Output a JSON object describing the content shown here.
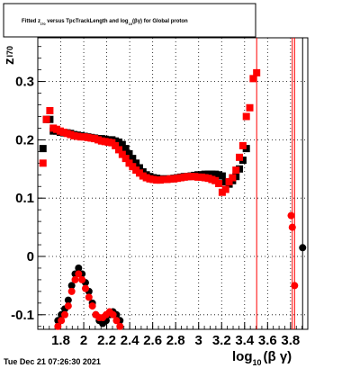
{
  "chart_data": {
    "type": "scatter",
    "title": "Fitted  z _{I70}  versus TpcTrackLength and log₁₀(βγ) for Global proton",
    "title_parts": {
      "pre": "Fitted  z",
      "sub1": "I70",
      "mid": "  versus TpcTrackLength and log",
      "sub2": "10",
      "post": "(βγ) for Global proton"
    },
    "xlabel": "log₁₀(βγ)",
    "xlabel_parts": {
      "main": "log",
      "sub": "10",
      "rest": "(β γ)"
    },
    "ylabel": "z_I70",
    "ylabel_parts": {
      "main": "z",
      "sub": "I70"
    },
    "xlim": [
      1.6,
      3.95
    ],
    "ylim": [
      -0.125,
      0.375
    ],
    "x_ticks": [
      "1.8",
      "2",
      "2.2",
      "2.4",
      "2.6",
      "2.8",
      "3",
      "3.2",
      "3.4",
      "3.6",
      "3.8"
    ],
    "x_tick_values": [
      1.8,
      2.0,
      2.2,
      2.4,
      2.6,
      2.8,
      3.0,
      3.2,
      3.4,
      3.6,
      3.8
    ],
    "x_tick_labels_render": [
      "1.8",
      "2",
      "2.2",
      "2.4",
      "2.6",
      "2.8",
      "3",
      "3.2",
      "3.4",
      "3.6",
      "3.8"
    ],
    "y_ticks": [
      "-0.1",
      "0",
      "0.1",
      "0.2",
      "0.3"
    ],
    "y_tick_values": [
      -0.1,
      0.0,
      0.1,
      0.2,
      0.3
    ],
    "grid": true,
    "legend": "none",
    "footer": "Tue Dec 21 07:26:30 2021",
    "series": [
      {
        "color": "#000000",
        "marker": "square",
        "points": [
          [
            1.645,
            0.185
          ],
          [
            1.675,
            0.235
          ],
          [
            1.705,
            0.235
          ],
          [
            1.735,
            0.215
          ],
          [
            1.765,
            0.215
          ],
          [
            1.795,
            0.213
          ],
          [
            1.825,
            0.212
          ],
          [
            1.855,
            0.212
          ],
          [
            1.885,
            0.211
          ],
          [
            1.915,
            0.209
          ],
          [
            1.945,
            0.208
          ],
          [
            1.975,
            0.207
          ],
          [
            2.005,
            0.206
          ],
          [
            2.035,
            0.205
          ],
          [
            2.065,
            0.204
          ],
          [
            2.095,
            0.203
          ],
          [
            2.125,
            0.202
          ],
          [
            2.155,
            0.202
          ],
          [
            2.185,
            0.201
          ],
          [
            2.215,
            0.2
          ],
          [
            2.245,
            0.2
          ],
          [
            2.275,
            0.198
          ],
          [
            2.305,
            0.196
          ],
          [
            2.335,
            0.192
          ],
          [
            2.365,
            0.185
          ],
          [
            2.395,
            0.176
          ],
          [
            2.425,
            0.168
          ],
          [
            2.455,
            0.16
          ],
          [
            2.485,
            0.152
          ],
          [
            2.515,
            0.145
          ],
          [
            2.545,
            0.14
          ],
          [
            2.575,
            0.137
          ],
          [
            2.605,
            0.135
          ],
          [
            2.635,
            0.134
          ],
          [
            2.665,
            0.133
          ],
          [
            2.695,
            0.133
          ],
          [
            2.725,
            0.133
          ],
          [
            2.755,
            0.133
          ],
          [
            2.785,
            0.134
          ],
          [
            2.815,
            0.135
          ],
          [
            2.845,
            0.136
          ],
          [
            2.875,
            0.137
          ],
          [
            2.905,
            0.137
          ],
          [
            2.935,
            0.138
          ],
          [
            2.965,
            0.139
          ],
          [
            2.995,
            0.14
          ],
          [
            3.025,
            0.14
          ],
          [
            3.055,
            0.141
          ],
          [
            3.085,
            0.141
          ],
          [
            3.115,
            0.141
          ],
          [
            3.145,
            0.141
          ],
          [
            3.175,
            0.14
          ],
          [
            3.205,
            0.138
          ],
          [
            3.235,
            0.128
          ],
          [
            3.265,
            0.124
          ],
          [
            3.295,
            0.13
          ],
          [
            3.325,
            0.137
          ],
          [
            3.355,
            0.15
          ],
          [
            3.385,
            0.165
          ],
          [
            3.415,
            0.185
          ]
        ]
      },
      {
        "color": "#000000",
        "marker": "circle",
        "points": [
          [
            1.775,
            -0.11
          ],
          [
            1.805,
            -0.1
          ],
          [
            1.835,
            -0.09
          ],
          [
            1.865,
            -0.075
          ],
          [
            1.895,
            -0.05
          ],
          [
            1.925,
            -0.03
          ],
          [
            1.955,
            -0.02
          ],
          [
            1.985,
            -0.03
          ],
          [
            2.015,
            -0.045
          ],
          [
            2.045,
            -0.06
          ],
          [
            2.075,
            -0.08
          ],
          [
            2.105,
            -0.1
          ],
          [
            2.135,
            -0.11
          ],
          [
            2.165,
            -0.115
          ],
          [
            2.195,
            -0.11
          ],
          [
            2.225,
            -0.1
          ],
          [
            2.255,
            -0.095
          ],
          [
            2.285,
            -0.1
          ],
          [
            2.315,
            -0.11
          ],
          [
            3.905,
            0.015
          ]
        ]
      },
      {
        "color": "#ff0000",
        "marker": "square",
        "points": [
          [
            1.645,
            0.16
          ],
          [
            1.675,
            0.235
          ],
          [
            1.705,
            0.25
          ],
          [
            1.735,
            0.22
          ],
          [
            1.765,
            0.218
          ],
          [
            1.795,
            0.215
          ],
          [
            1.825,
            0.213
          ],
          [
            1.855,
            0.211
          ],
          [
            1.885,
            0.209
          ],
          [
            1.915,
            0.207
          ],
          [
            1.945,
            0.206
          ],
          [
            1.975,
            0.205
          ],
          [
            2.005,
            0.205
          ],
          [
            2.035,
            0.204
          ],
          [
            2.065,
            0.203
          ],
          [
            2.095,
            0.202
          ],
          [
            2.125,
            0.2
          ],
          [
            2.155,
            0.198
          ],
          [
            2.185,
            0.197
          ],
          [
            2.215,
            0.196
          ],
          [
            2.245,
            0.195
          ],
          [
            2.275,
            0.19
          ],
          [
            2.305,
            0.183
          ],
          [
            2.335,
            0.175
          ],
          [
            2.365,
            0.168
          ],
          [
            2.395,
            0.16
          ],
          [
            2.425,
            0.154
          ],
          [
            2.455,
            0.148
          ],
          [
            2.485,
            0.143
          ],
          [
            2.515,
            0.138
          ],
          [
            2.545,
            0.135
          ],
          [
            2.575,
            0.133
          ],
          [
            2.605,
            0.132
          ],
          [
            2.635,
            0.131
          ],
          [
            2.665,
            0.131
          ],
          [
            2.695,
            0.132
          ],
          [
            2.725,
            0.132
          ],
          [
            2.755,
            0.133
          ],
          [
            2.785,
            0.133
          ],
          [
            2.815,
            0.134
          ],
          [
            2.845,
            0.135
          ],
          [
            2.875,
            0.136
          ],
          [
            2.905,
            0.137
          ],
          [
            2.935,
            0.137
          ],
          [
            2.965,
            0.137
          ],
          [
            2.995,
            0.136
          ],
          [
            3.025,
            0.136
          ],
          [
            3.055,
            0.135
          ],
          [
            3.085,
            0.134
          ],
          [
            3.115,
            0.132
          ],
          [
            3.145,
            0.13
          ],
          [
            3.175,
            0.125
          ],
          [
            3.205,
            0.11
          ],
          [
            3.235,
            0.115
          ],
          [
            3.265,
            0.128
          ],
          [
            3.295,
            0.135
          ],
          [
            3.325,
            0.148
          ],
          [
            3.355,
            0.17
          ],
          [
            3.385,
            0.19
          ],
          [
            3.415,
            0.24
          ],
          [
            3.445,
            0.255
          ],
          [
            3.475,
            0.305
          ],
          [
            3.505,
            0.315
          ]
        ]
      },
      {
        "color": "#ff0000",
        "marker": "circle",
        "points": [
          [
            1.775,
            -0.12
          ],
          [
            1.805,
            -0.11
          ],
          [
            1.835,
            -0.1
          ],
          [
            1.865,
            -0.085
          ],
          [
            1.895,
            -0.06
          ],
          [
            1.925,
            -0.04
          ],
          [
            1.955,
            -0.03
          ],
          [
            1.985,
            -0.04
          ],
          [
            2.015,
            -0.055
          ],
          [
            2.045,
            -0.07
          ],
          [
            2.075,
            -0.085
          ],
          [
            2.105,
            -0.1
          ],
          [
            2.135,
            -0.105
          ],
          [
            2.165,
            -0.105
          ],
          [
            2.195,
            -0.1
          ],
          [
            2.225,
            -0.095
          ],
          [
            2.255,
            -0.1
          ],
          [
            2.285,
            -0.11
          ],
          [
            2.315,
            -0.12
          ],
          [
            3.805,
            0.07
          ],
          [
            3.815,
            0.05
          ],
          [
            3.835,
            -0.05
          ]
        ]
      }
    ],
    "vertical_lines": [
      {
        "x": 3.505,
        "color": "#ff0000"
      },
      {
        "x": 3.815,
        "color": "#ff0000"
      },
      {
        "x": 3.835,
        "color": "#ff0000"
      },
      {
        "x": 3.905,
        "color": "#000000"
      }
    ]
  }
}
